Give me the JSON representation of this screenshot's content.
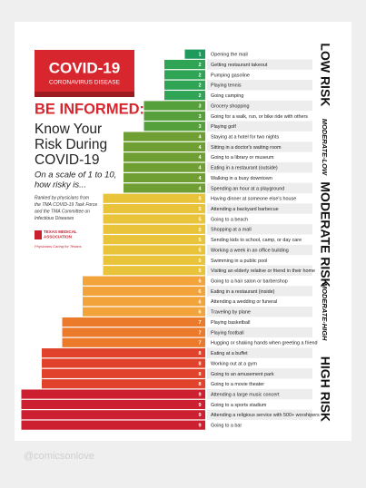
{
  "chart_data": {
    "type": "bar",
    "categories": [
      "Opening the mail",
      "Getting restaurant takeout",
      "Pumping gasoline",
      "Playing tennis",
      "Going camping",
      "Grocery shopping",
      "Going for a walk, run, or bike ride with others",
      "Playing golf",
      "Staying at a hotel for two nights",
      "Sitting in a doctor's waiting room",
      "Going to a library or museum",
      "Eating in a restaurant (outside)",
      "Walking in a busy downtown",
      "Spending an hour at a playground",
      "Having dinner at someone else's house",
      "Attending a backyard barbecue",
      "Going to a beach",
      "Shopping at a mall",
      "Sending kids to school, camp, or day care",
      "Working a week in an office building",
      "Swimming in a public pool",
      "Visiting an elderly relative or friend in their home",
      "Going to a hair salon or barbershop",
      "Eating in a restaurant (inside)",
      "Attending a wedding or funeral",
      "Traveling by plane",
      "Playing basketball",
      "Playing football",
      "Hugging or shaking hands when greeting a friend",
      "Eating at a buffet",
      "Working out at a gym",
      "Going to an amusement park",
      "Going to a movie theater",
      "Attending a large music concert",
      "Going to a sports stadium",
      "Attending a religious service with 500+ worshipers",
      "Going to a bar"
    ],
    "values": [
      1,
      2,
      2,
      2,
      2,
      3,
      3,
      3,
      4,
      4,
      4,
      4,
      4,
      4,
      5,
      5,
      5,
      5,
      5,
      5,
      5,
      5,
      6,
      6,
      6,
      6,
      7,
      7,
      7,
      8,
      8,
      8,
      8,
      9,
      9,
      9,
      9
    ],
    "palette": [
      "#1d9a5c",
      "#2fa455",
      "#55a03a",
      "#6f9f32",
      "#e9c43b",
      "#f2a33a",
      "#ec7a2b",
      "#e0422b",
      "#cc1f2f"
    ],
    "risk_levels": [
      "LOW RISK",
      "MODERATE-LOW",
      "MODERATE RISK",
      "MODERATE-HIGH",
      "HIGH RISK"
    ]
  },
  "panel": {
    "badge_title": "COVID-19",
    "badge_subtitle": "CORONAVIRUS DISEASE",
    "headline": "BE INFORMED:",
    "title_lines": [
      "Know Your",
      "Risk During",
      "COVID-19"
    ],
    "scale_lines": [
      "On a scale of 1 to 10,",
      "how risky is..."
    ],
    "source_lines": [
      "Ranked by physicians from",
      "the TMA COVID-19 Task Force",
      "and the TMA Committee on",
      "Infectious Diseases"
    ],
    "logo_lines": [
      "TEXAS MEDICAL",
      "ASSOCIATION"
    ],
    "tagline": "Physicians Caring for Texans"
  },
  "watermark": "@comicsonlove"
}
